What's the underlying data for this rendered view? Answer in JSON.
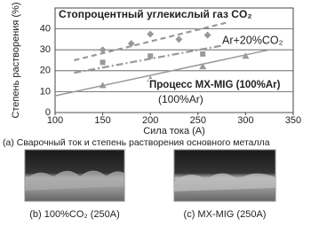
{
  "chart_data": {
    "type": "scatter",
    "x_label": "Сила тока (A)",
    "y_label": "Степень растворения (%)",
    "xlim": [
      100,
      350
    ],
    "xticks": [
      100,
      150,
      200,
      250,
      300,
      350
    ],
    "ylim": [
      0,
      50
    ],
    "yticks": [
      0,
      10,
      20,
      30,
      40
    ],
    "grid": true,
    "series": [
      {
        "name": "Стопроцентный углекислый газ CO₂",
        "color": "#999999",
        "marker": "diamond",
        "line": "dashed",
        "x": [
          150,
          180,
          200,
          230,
          260
        ],
        "values": [
          30,
          33,
          37.5,
          35,
          37
        ],
        "trend_x": [
          120,
          280
        ],
        "trend_values": [
          25,
          43
        ]
      },
      {
        "name": "Ar+20%CO₂",
        "color": "#999999",
        "marker": "square",
        "line": "dashdot",
        "x": [
          150,
          200,
          255
        ],
        "values": [
          24,
          27,
          28
        ],
        "trend_x": [
          120,
          275
        ],
        "trend_values": [
          19,
          32
        ]
      },
      {
        "name": "Процесс MX-MIG (100%Ar)",
        "color": "#999999",
        "marker": "triangle",
        "line": "solid",
        "x": [
          150,
          200,
          255,
          300
        ],
        "values": [
          13,
          16,
          22,
          27
        ],
        "trend_x": [
          100,
          325
        ],
        "trend_values": [
          8,
          30
        ]
      }
    ],
    "annotation": "(100%Ar)",
    "caption": "(a) Сварочный ток и степень растворения основного металла"
  },
  "photos": [
    {
      "caption": "(b) 100%CO₂ (250A)"
    },
    {
      "caption": "(c) MX-MIG (250A)"
    }
  ]
}
